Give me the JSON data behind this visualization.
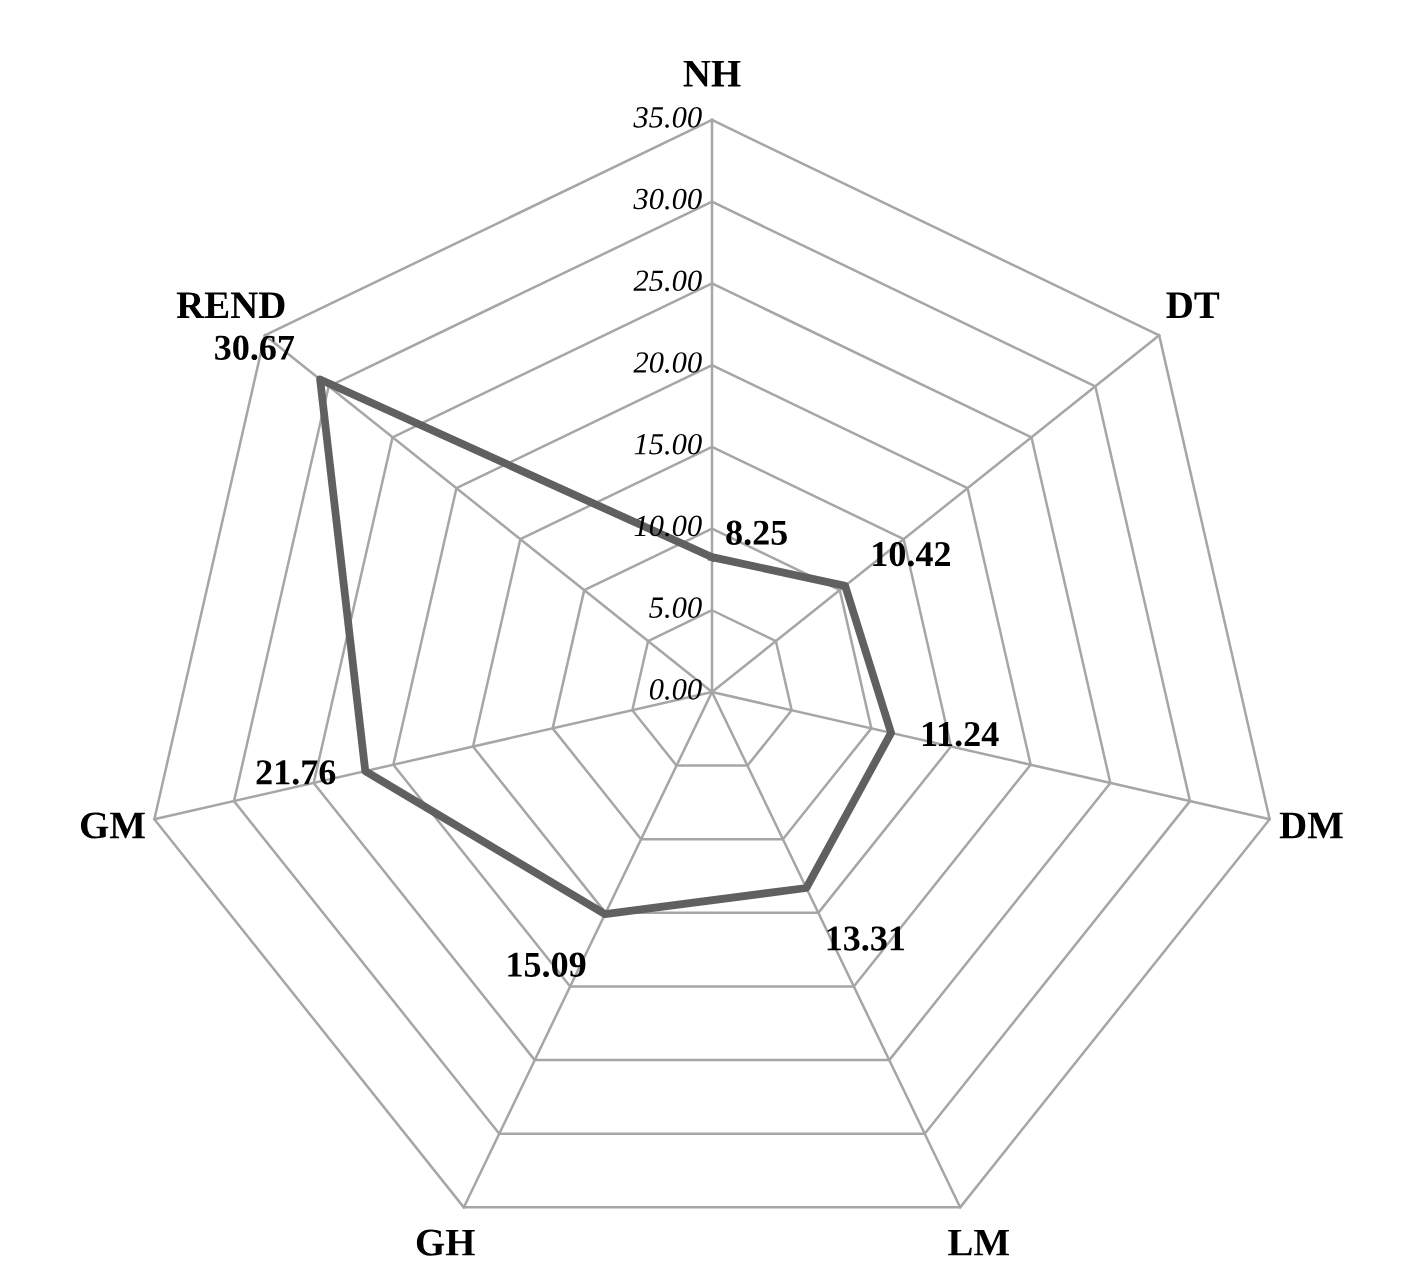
{
  "chart_data": {
    "type": "radar",
    "categories": [
      "NH",
      "DT",
      "DM",
      "LM",
      "GH",
      "GM",
      "REND"
    ],
    "series": [
      {
        "color": "#606060",
        "values": [
          8.25,
          10.42,
          11.24,
          13.31,
          15.09,
          21.76,
          30.67
        ]
      }
    ],
    "ylim": [
      0,
      35
    ],
    "yticks": [
      {
        "value": 0,
        "label": "0.00"
      },
      {
        "value": 5,
        "label": "5.00"
      },
      {
        "value": 10,
        "label": "10.00"
      },
      {
        "value": 15,
        "label": "15.00"
      },
      {
        "value": 20,
        "label": "20.00"
      },
      {
        "value": 25,
        "label": "25.00"
      },
      {
        "value": 30,
        "label": "30.00"
      },
      {
        "value": 35,
        "label": "35.00"
      }
    ],
    "grid": true,
    "data_labels": true,
    "marker": "none",
    "line_style": "solid"
  }
}
